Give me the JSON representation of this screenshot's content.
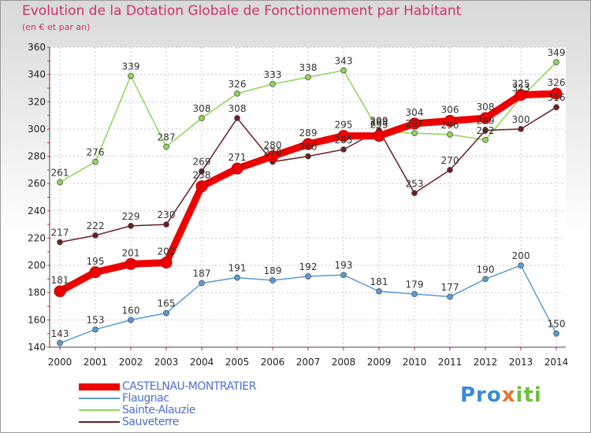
{
  "chart_data": {
    "type": "line",
    "title": "Evolution de la Dotation Globale de Fonctionnement par Habitant",
    "subtitle": "(en € et par an)",
    "xlabel": "",
    "ylabel": "",
    "x": [
      "2000",
      "2001",
      "2002",
      "2003",
      "2004",
      "2005",
      "2006",
      "2007",
      "2008",
      "2009",
      "2010",
      "2011",
      "2012",
      "2013",
      "2014"
    ],
    "ylim": [
      140,
      360
    ],
    "yticks": [
      140,
      160,
      180,
      200,
      220,
      240,
      260,
      280,
      300,
      320,
      340,
      360
    ],
    "grid": true,
    "legend_position": "bottom-left",
    "series": [
      {
        "name": "CASTELNAU-MONTRATIER",
        "color": "#ee0000",
        "values": [
          181,
          195,
          201,
          202,
          258,
          271,
          280,
          289,
          295,
          295,
          304,
          306,
          308,
          325,
          326
        ]
      },
      {
        "name": "Flaugnac",
        "color": "#5a9ad6",
        "values": [
          143,
          153,
          160,
          165,
          187,
          191,
          189,
          192,
          193,
          181,
          179,
          177,
          190,
          200,
          150
        ]
      },
      {
        "name": "Sainte-Alauzie",
        "color": "#8fd45a",
        "values": [
          261,
          276,
          339,
          287,
          308,
          326,
          333,
          338,
          343,
          298,
          297,
          296,
          292,
          323,
          349
        ]
      },
      {
        "name": "Sauveterre",
        "color": "#6b1f25",
        "values": [
          217,
          222,
          229,
          230,
          269,
          308,
          276,
          280,
          285,
          299,
          253,
          270,
          299,
          300,
          316
        ]
      }
    ]
  },
  "brand": {
    "part1": "Pro",
    "part2": "x",
    "part3": "iti"
  }
}
